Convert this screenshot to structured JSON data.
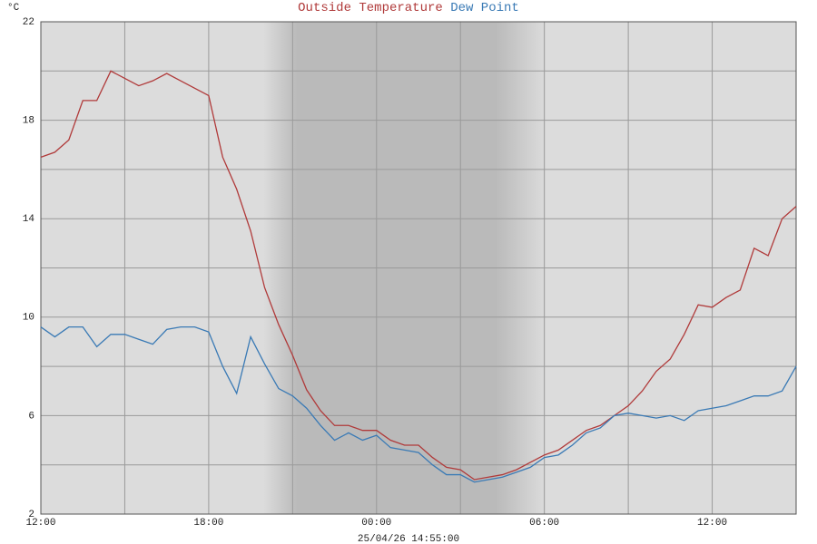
{
  "chart_data": {
    "type": "line",
    "y_label": "°C",
    "timestamp": "25/04/26 14:55:00",
    "x": [
      0,
      0.5,
      1,
      1.5,
      2,
      2.5,
      3,
      3.5,
      4,
      4.5,
      5,
      5.5,
      6,
      6.5,
      7,
      7.5,
      8,
      8.5,
      9,
      9.5,
      10,
      10.5,
      11,
      11.5,
      12,
      12.5,
      13,
      13.5,
      14,
      14.5,
      15,
      15.5,
      16,
      16.5,
      17,
      17.5,
      18,
      18.5,
      19,
      19.5,
      20,
      20.5,
      21,
      21.5,
      22,
      22.5,
      23,
      23.5,
      24,
      24.5,
      25,
      25.5,
      26,
      26.5,
      27
    ],
    "series": [
      {
        "name": "Outside Temperature",
        "color": "#b03a3a",
        "values": [
          16.5,
          16.7,
          17.2,
          18.8,
          18.8,
          20.0,
          19.7,
          19.4,
          19.6,
          19.9,
          19.6,
          19.3,
          19.0,
          16.5,
          15.2,
          13.5,
          11.2,
          9.7,
          8.45,
          7.05,
          6.2,
          5.6,
          5.6,
          5.4,
          5.4,
          5.0,
          4.8,
          4.8,
          4.3,
          3.9,
          3.8,
          3.4,
          3.5,
          3.6,
          3.8,
          4.1,
          4.4,
          4.6,
          5.0,
          5.4,
          5.6,
          6.0,
          6.4,
          7.0,
          7.8,
          8.3,
          9.3,
          10.5,
          10.4,
          10.8,
          11.1,
          12.8,
          12.5,
          14.0,
          14.5
        ]
      },
      {
        "name": "Dew Point",
        "color": "#3a7ab5",
        "values": [
          9.6,
          9.2,
          9.6,
          9.6,
          8.8,
          9.3,
          9.3,
          9.1,
          8.9,
          9.5,
          9.6,
          9.6,
          9.4,
          8.0,
          6.9,
          9.2,
          8.1,
          7.1,
          6.8,
          6.3,
          5.6,
          5.0,
          5.3,
          5.0,
          5.2,
          4.7,
          4.6,
          4.5,
          4.0,
          3.6,
          3.6,
          3.3,
          3.4,
          3.5,
          3.7,
          3.9,
          4.3,
          4.4,
          4.8,
          5.3,
          5.5,
          6.0,
          6.1,
          6.0,
          5.9,
          6.0,
          5.8,
          6.2,
          6.3,
          6.4,
          6.6,
          6.8,
          6.8,
          7.0,
          8.0
        ]
      }
    ],
    "xlim": [
      0,
      27
    ],
    "xticks": [
      {
        "value": 0,
        "label": "12:00"
      },
      {
        "value": 6,
        "label": "18:00"
      },
      {
        "value": 12,
        "label": "00:00"
      },
      {
        "value": 18,
        "label": "06:00"
      },
      {
        "value": 24,
        "label": "12:00"
      }
    ],
    "xminorticks": [
      3,
      9,
      15,
      21
    ],
    "ylim": [
      2,
      22
    ],
    "yticks": [
      2,
      6,
      10,
      14,
      18,
      22
    ],
    "yminorticks": [
      4,
      8,
      12,
      16,
      20
    ],
    "grid": true
  }
}
